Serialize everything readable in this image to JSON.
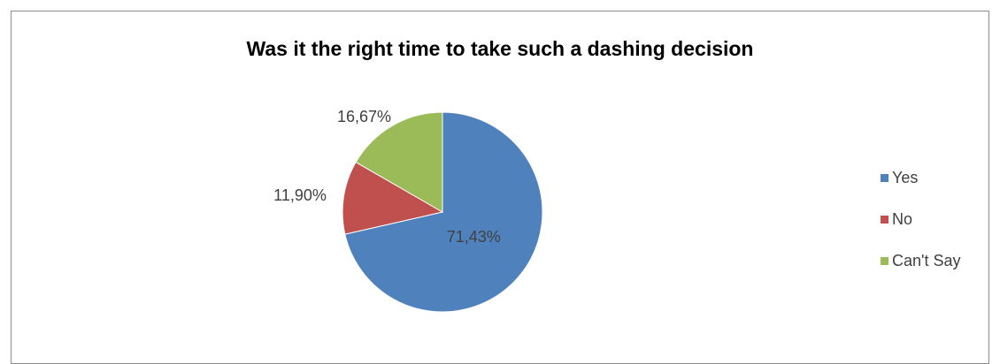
{
  "chart_data": {
    "type": "pie",
    "title": "Was it the right time to take such a dashing decision",
    "categories": [
      "Yes",
      "No",
      "Can't Say"
    ],
    "values": [
      71.43,
      11.9,
      16.67
    ],
    "labels": [
      "71,43%",
      "11,90%",
      "16,67%"
    ],
    "colors": [
      "#4f81bd",
      "#c0504d",
      "#9bbb59"
    ],
    "legend_position": "right",
    "start_angle": "12-o'clock",
    "direction": "clockwise"
  }
}
